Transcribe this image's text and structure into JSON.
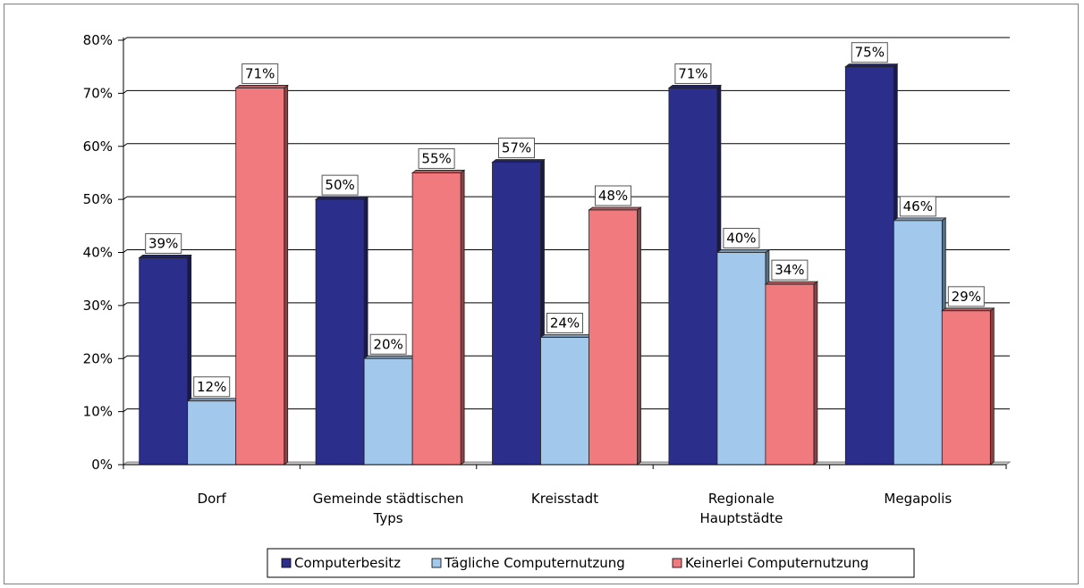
{
  "chart_data": {
    "type": "bar",
    "categories": [
      "Dorf",
      "Gemeinde städtischen Typs",
      "Kreisstadt",
      "Regionale Hauptstädte",
      "Megapolis"
    ],
    "category_lines": [
      [
        "Dorf"
      ],
      [
        "Gemeinde städtischen",
        "Typs"
      ],
      [
        "Kreisstadt"
      ],
      [
        "Regionale",
        "Hauptstädte"
      ],
      [
        "Megapolis"
      ]
    ],
    "series": [
      {
        "name": "Computerbesitz",
        "values": [
          39,
          50,
          57,
          71,
          75
        ],
        "color": "#2b2e8a"
      },
      {
        "name": "Tägliche Computernutzung",
        "values": [
          12,
          20,
          24,
          40,
          46
        ],
        "color": "#a2c8ec"
      },
      {
        "name": "Keinerlei Computernutzung",
        "values": [
          71,
          55,
          48,
          34,
          29
        ],
        "color": "#f07a7e"
      }
    ],
    "data_label_suffix": "%",
    "yticks": [
      "0%",
      "10%",
      "20%",
      "30%",
      "40%",
      "50%",
      "60%",
      "70%",
      "80%"
    ],
    "ylim": [
      0,
      80
    ],
    "grid": true,
    "legend_position": "bottom",
    "title": "",
    "xlabel": "",
    "ylabel": ""
  }
}
